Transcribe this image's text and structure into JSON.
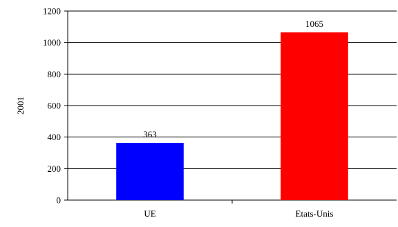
{
  "chart_data": {
    "type": "bar",
    "title": "",
    "xlabel": "",
    "ylabel": "2001",
    "categories": [
      "UE",
      "Etats-Unis"
    ],
    "series": [
      {
        "values": [
          363,
          1065
        ],
        "colors": [
          "#0000ff",
          "#ff0000"
        ]
      }
    ],
    "data_labels": [
      "363",
      "1065"
    ],
    "ylim": [
      0,
      1200
    ],
    "yticks": [
      0,
      200,
      400,
      600,
      800,
      1000,
      1200
    ],
    "ytick_labels": [
      "0",
      "200",
      "400",
      "600",
      "800",
      "1000",
      "1200"
    ],
    "grid": true,
    "legend": "none"
  }
}
